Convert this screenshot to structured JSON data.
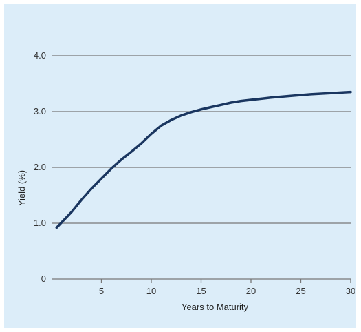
{
  "chart_data": {
    "type": "line",
    "title": "",
    "xlabel": "Years to Maturity",
    "ylabel": "Yield (%)",
    "xlim": [
      0,
      30
    ],
    "ylim": [
      0,
      4.0
    ],
    "x_ticks": [
      5,
      10,
      15,
      20,
      25,
      30
    ],
    "y_ticks": [
      0,
      1.0,
      2.0,
      3.0,
      4.0
    ],
    "y_tick_labels": [
      "0",
      "1.0",
      "2.0",
      "3.0",
      "4.0"
    ],
    "grid": "horizontal",
    "series": [
      {
        "x": [
          0.5,
          2,
          3,
          4,
          5,
          6,
          7,
          8,
          9,
          10,
          11,
          12,
          13,
          14,
          15,
          16,
          17,
          18,
          19,
          20,
          22,
          24,
          26,
          28,
          30
        ],
        "values": [
          0.92,
          1.2,
          1.42,
          1.62,
          1.8,
          1.98,
          2.14,
          2.28,
          2.43,
          2.6,
          2.75,
          2.85,
          2.93,
          2.99,
          3.04,
          3.08,
          3.12,
          3.16,
          3.19,
          3.21,
          3.25,
          3.28,
          3.31,
          3.33,
          3.35
        ]
      }
    ],
    "colors": {
      "line": "#1a3660",
      "grid": "#777777",
      "background": "#dcedf9"
    }
  }
}
